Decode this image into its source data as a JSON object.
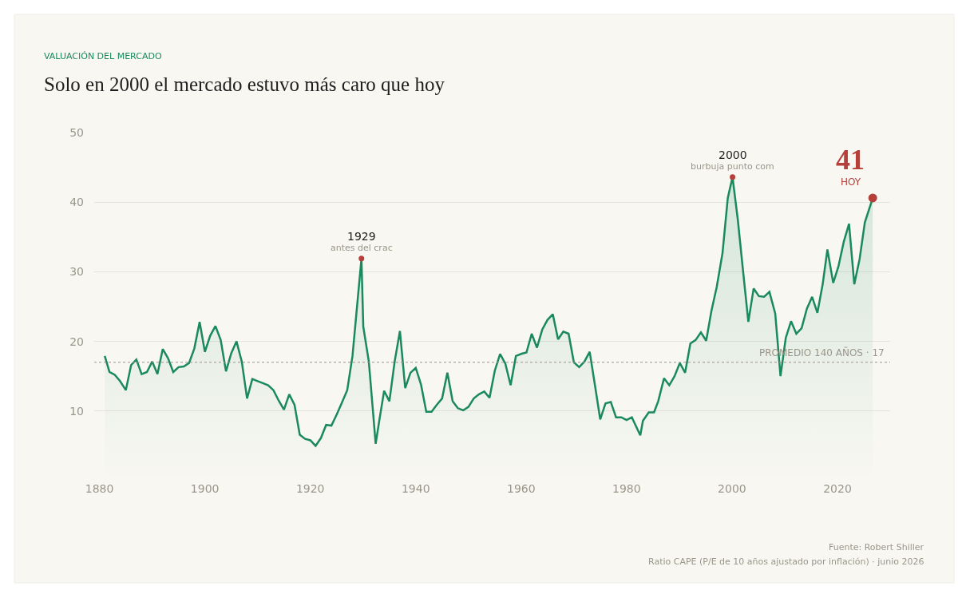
{
  "chart_data": {
    "type": "area",
    "title": "Solo en 2000 el mercado estuvo más caro que hoy",
    "subtitle": "VALUACIÓN DEL MERCADO",
    "x": [
      1881,
      1881.9,
      1882.9,
      1883.9,
      1885,
      1886,
      1887,
      1888,
      1889,
      1890,
      1891,
      1892,
      1893,
      1894,
      1895,
      1896,
      1897,
      1898,
      1899,
      1900,
      1901,
      1902,
      1903,
      1904,
      1905,
      1906,
      1907,
      1908,
      1909,
      1910,
      1911,
      1912,
      1913,
      1914,
      1915,
      1916,
      1917,
      1918,
      1919,
      1920,
      1921,
      1922,
      1923,
      1924,
      1925,
      1926,
      1927,
      1928,
      1929.7,
      1930.05,
      1931.1,
      1932.4,
      1933.1,
      1934,
      1935,
      1936,
      1937,
      1938,
      1939,
      1940,
      1941,
      1942,
      1943,
      1944,
      1945,
      1946,
      1947,
      1948,
      1949,
      1950,
      1951,
      1952,
      1953,
      1954,
      1955,
      1956,
      1957,
      1958,
      1959,
      1960,
      1961,
      1962,
      1963,
      1964,
      1965,
      1966,
      1967,
      1968,
      1969,
      1970,
      1971,
      1972,
      1973,
      1974,
      1975,
      1976,
      1977,
      1978,
      1979,
      1980,
      1981,
      1982.6,
      1983.1,
      1984.2,
      1985.2,
      1986,
      1987.1,
      1988.1,
      1989.1,
      1990.1,
      1991.1,
      1992.1,
      1993.1,
      1994.1,
      1995.1,
      1996.1,
      1997.1,
      1998.2,
      1999.2,
      2000.1,
      2001.1,
      2002.1,
      2003.1,
      2004.1,
      2005.1,
      2006.1,
      2007.1,
      2008.2,
      2009.2,
      2010.2,
      2011.2,
      2012.2,
      2013.2,
      2014.2,
      2015.2,
      2016.2,
      2017.2,
      2018.1,
      2019.2,
      2020.2,
      2021.2,
      2022.2,
      2023.2,
      2024.2,
      2025.2,
      2026.7
    ],
    "series": [
      {
        "color": "#1a8a5c",
        "values": [
          17.9,
          15.6,
          15.2,
          14.3,
          13.0,
          16.6,
          17.4,
          15.3,
          15.6,
          17.1,
          15.3,
          18.9,
          17.6,
          15.6,
          16.3,
          16.4,
          16.9,
          19.0,
          22.8,
          18.5,
          20.8,
          22.2,
          20.2,
          15.7,
          18.3,
          20.0,
          17.1,
          11.8,
          14.6,
          14.3,
          14.0,
          13.7,
          13.0,
          11.5,
          10.2,
          12.4,
          10.9,
          6.6,
          6.0,
          5.8,
          5.0,
          6.1,
          8.0,
          7.9,
          9.5,
          11.2,
          13.0,
          17.9,
          31.9,
          22.1,
          17.1,
          5.3,
          8.7,
          12.9,
          11.4,
          17.1,
          21.5,
          13.3,
          15.5,
          16.2,
          13.8,
          9.9,
          9.9,
          10.9,
          11.8,
          15.5,
          11.4,
          10.4,
          10.1,
          10.6,
          11.8,
          12.4,
          12.8,
          11.9,
          15.8,
          18.2,
          16.8,
          13.7,
          17.9,
          18.2,
          18.4,
          21.1,
          19.1,
          21.7,
          23.1,
          23.9,
          20.3,
          21.4,
          21.1,
          17.0,
          16.3,
          17.1,
          18.5,
          13.7,
          8.8,
          11.1,
          11.3,
          9.1,
          9.1,
          8.7,
          9.1,
          6.5,
          8.6,
          9.8,
          9.8,
          11.4,
          14.7,
          13.7,
          15.0,
          16.9,
          15.5,
          19.7,
          20.2,
          21.3,
          20.1,
          24.4,
          27.8,
          32.7,
          40.6,
          43.6,
          37.5,
          30.1,
          22.8,
          27.6,
          26.5,
          26.4,
          27.1,
          24.0,
          15.0,
          20.5,
          22.9,
          21.1,
          21.9,
          24.7,
          26.4,
          24.1,
          28.2,
          33.2,
          28.4,
          30.8,
          34.3,
          36.9,
          28.2,
          31.8,
          37.1,
          40.6
        ]
      }
    ],
    "xlim": [
      1879,
      2030
    ],
    "xticks": [
      1880,
      1900,
      1920,
      1940,
      1960,
      1980,
      2000,
      2020
    ],
    "ylim": [
      0,
      50
    ],
    "yticks": [
      10,
      20,
      30,
      40,
      50
    ],
    "grid": "y",
    "ref_lines": [
      {
        "axis": "y",
        "value": 17,
        "label": "PROMEDIO 140 AÑOS · 17",
        "color": "#9a968a",
        "line_style": "dotted"
      }
    ],
    "annotations": [
      {
        "text": "1929\nantes del crac",
        "x": 1929.7,
        "y": 31.9
      },
      {
        "text": "2000\nburbuja punto com",
        "x": 2000.1,
        "y": 43.6
      },
      {
        "text": "41\nHOY",
        "x": 2026.7,
        "y": 40.6
      },
      "Fuente: Robert Shiller",
      "Ratio CAPE (P/E de 10 años ajustado por inflación) · junio 2026"
    ]
  }
}
